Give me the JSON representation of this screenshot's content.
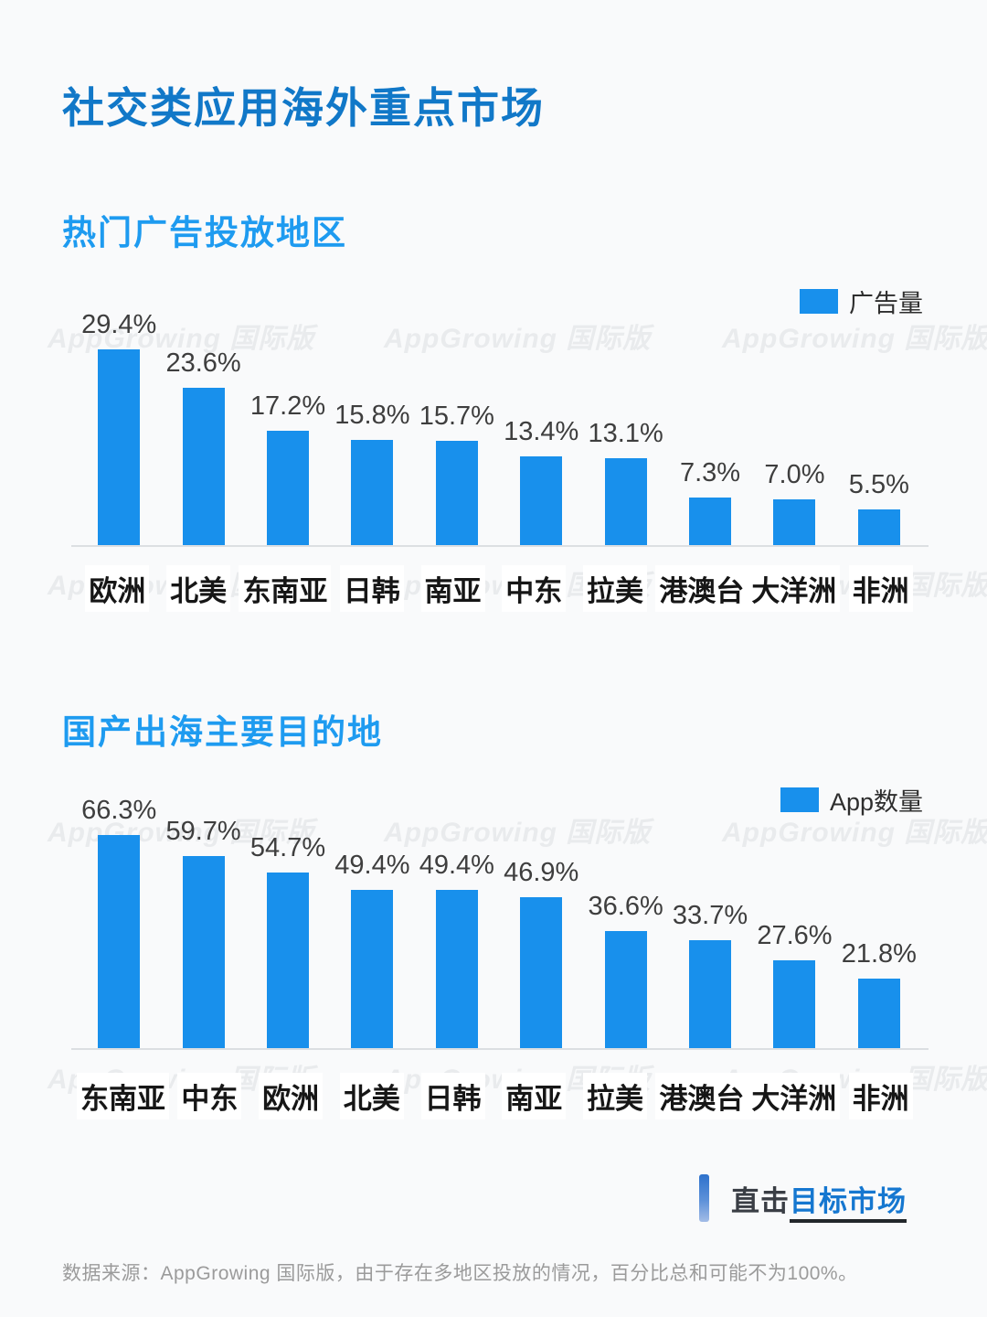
{
  "page": {
    "title": "社交类应用海外重点市场",
    "watermark": "AppGrowing 国际版",
    "cta": {
      "prefix": "直击",
      "link": "目标市场"
    },
    "footer": "数据来源：AppGrowing 国际版，由于存在多地区投放的情况，百分比总和可能不为100%。"
  },
  "colors": {
    "bar": "#1890ec",
    "title": "#1178c8",
    "heading": "#1e9bf0",
    "cta_link": "#1577d0",
    "background": "#f9fafb"
  },
  "chart_data": [
    {
      "type": "bar",
      "title": "热门广告投放地区",
      "legend": "广告量",
      "unit": "%",
      "categories": [
        "欧洲",
        "北美",
        "东南亚",
        "日韩",
        "南亚",
        "中东",
        "拉美",
        "港澳台",
        "大洋洲",
        "非洲"
      ],
      "values": [
        29.4,
        23.6,
        17.2,
        15.8,
        15.7,
        13.4,
        13.1,
        7.3,
        7.0,
        5.5
      ],
      "labels": [
        "29.4%",
        "23.6%",
        "17.2%",
        "15.8%",
        "15.7%",
        "13.4%",
        "13.1%",
        "7.3%",
        "7.0%",
        "5.5%"
      ],
      "ylim": [
        0,
        32
      ],
      "grid": false,
      "legend_position": "top-right"
    },
    {
      "type": "bar",
      "title": "国产出海主要目的地",
      "legend": "App数量",
      "unit": "%",
      "categories": [
        "东南亚",
        "中东",
        "欧洲",
        "北美",
        "日韩",
        "南亚",
        "拉美",
        "港澳台",
        "大洋洲",
        "非洲"
      ],
      "values": [
        66.3,
        59.7,
        54.7,
        49.4,
        49.4,
        46.9,
        36.6,
        33.7,
        27.6,
        21.8
      ],
      "labels": [
        "66.3%",
        "59.7%",
        "54.7%",
        "49.4%",
        "49.4%",
        "46.9%",
        "36.6%",
        "33.7%",
        "27.6%",
        "21.8%"
      ],
      "ylim": [
        0,
        75
      ],
      "grid": false,
      "legend_position": "top-right"
    }
  ]
}
